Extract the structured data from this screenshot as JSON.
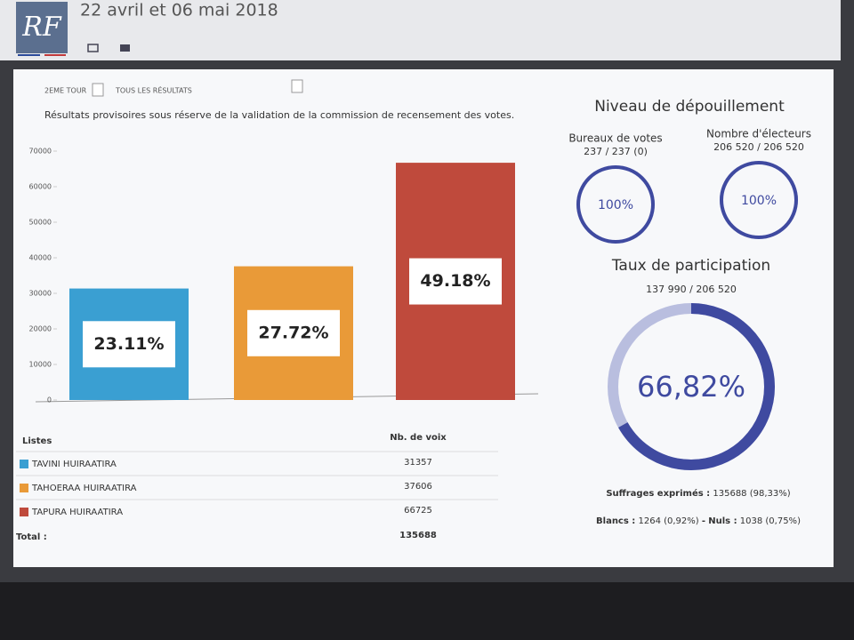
{
  "header": {
    "logo": "RF",
    "title": "22 avril et 06 mai 2018"
  },
  "filters": [
    "2EME TOUR",
    "TOUS LES RÉSULTATS"
  ],
  "note": "Résultats provisoires sous réserve de la validation de la commission de recensement des votes.",
  "chart_data": {
    "type": "bar",
    "categories": [
      "TAVINI HUIRAATIRA",
      "TAHOERAA HUIRAATIRA",
      "TAPURA HUIRAATIRA"
    ],
    "values": [
      31357,
      37606,
      66725
    ],
    "bar_labels": [
      "23.11%",
      "27.72%",
      "49.18%"
    ],
    "colors": [
      "#3a9fd2",
      "#e99a38",
      "#bf4a3c"
    ],
    "ylim": [
      0,
      70000
    ],
    "yticks": [
      0,
      10000,
      20000,
      30000,
      40000,
      50000,
      60000,
      70000
    ]
  },
  "table": {
    "headers": [
      "Listes",
      "Nb. de voix"
    ],
    "total_label": "Total :",
    "total": 135688
  },
  "panel": {
    "title": "Niveau de dépouillement",
    "gauges": [
      {
        "label": "Bureaux de votes",
        "detail": "237 / 237 (0)",
        "percent": {
          "value": 100,
          "label": "100%"
        }
      },
      {
        "label": "Nombre d'électeurs",
        "detail": "206 520 / 206 520",
        "percent": {
          "value": 100,
          "label": "100%"
        }
      }
    ],
    "participation": {
      "title": "Taux de participation",
      "detail": "137 990 / 206 520",
      "percent": {
        "value": 66.82,
        "label": "66,82%"
      }
    },
    "exprimes": {
      "label": "Suffrages exprimés :",
      "text": "135688 (98,33%)"
    },
    "blancs": {
      "label": "Blancs :",
      "text": "1264 (0,92%)"
    },
    "separator": "-",
    "nuls": {
      "label": "Nuls :",
      "text": "1038 (0,75%)"
    }
  }
}
